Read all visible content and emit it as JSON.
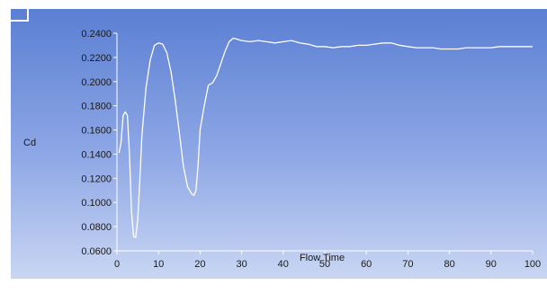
{
  "chart_data": {
    "type": "line",
    "title": "",
    "xlabel": "Flow Time",
    "ylabel": "Cd",
    "xlim": [
      0,
      100
    ],
    "ylim": [
      0.06,
      0.24
    ],
    "xticks": [
      0,
      10,
      20,
      30,
      40,
      50,
      60,
      70,
      80,
      90,
      100
    ],
    "xtick_labels": [
      "0",
      "10",
      "20",
      "30",
      "40",
      "50",
      "60",
      "70",
      "80",
      "90",
      "100"
    ],
    "yticks": [
      0.06,
      0.08,
      0.1,
      0.12,
      0.14,
      0.16,
      0.18,
      0.2,
      0.22,
      0.24
    ],
    "ytick_labels": [
      "0.0600",
      "0.0800",
      "0.1000",
      "0.1200",
      "0.1400",
      "0.1600",
      "0.1800",
      "0.2000",
      "0.2200",
      "0.2400"
    ],
    "grid": false,
    "legend": "none",
    "colors": {
      "line": "#ffffff",
      "background_top": "#5b7fd3",
      "background_bottom": "#c9d6f3",
      "text": "#1a1a1a"
    },
    "series": [
      {
        "x": [
          0.5,
          1,
          1.5,
          2,
          2.5,
          3,
          3.5,
          4,
          4.5,
          5,
          5.5,
          6,
          7,
          8,
          9,
          10,
          11,
          12,
          13,
          14,
          15,
          16,
          17,
          18,
          18.5,
          19,
          19.5,
          20,
          21,
          22,
          23,
          24,
          25,
          26,
          27,
          28,
          29,
          30,
          32,
          34,
          36,
          38,
          40,
          42,
          44,
          46,
          48,
          50,
          52,
          54,
          56,
          58,
          60,
          62,
          64,
          66,
          68,
          70,
          72,
          74,
          76,
          78,
          80,
          82,
          84,
          86,
          88,
          90,
          92,
          94,
          96,
          98,
          100
        ],
        "y": [
          0.141,
          0.15,
          0.172,
          0.175,
          0.172,
          0.14,
          0.092,
          0.072,
          0.071,
          0.086,
          0.118,
          0.155,
          0.195,
          0.218,
          0.23,
          0.232,
          0.231,
          0.224,
          0.208,
          0.185,
          0.158,
          0.13,
          0.113,
          0.107,
          0.106,
          0.11,
          0.13,
          0.16,
          0.18,
          0.197,
          0.199,
          0.205,
          0.215,
          0.225,
          0.233,
          0.236,
          0.235,
          0.234,
          0.233,
          0.234,
          0.233,
          0.232,
          0.233,
          0.234,
          0.232,
          0.231,
          0.229,
          0.229,
          0.228,
          0.229,
          0.229,
          0.23,
          0.23,
          0.231,
          0.232,
          0.232,
          0.23,
          0.229,
          0.228,
          0.228,
          0.228,
          0.227,
          0.227,
          0.227,
          0.228,
          0.228,
          0.228,
          0.228,
          0.229,
          0.229,
          0.229,
          0.229,
          0.229
        ]
      }
    ]
  }
}
